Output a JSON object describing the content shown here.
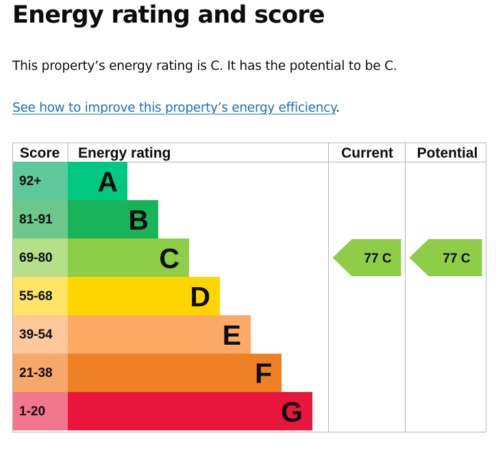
{
  "page": {
    "title": "Energy rating and score",
    "intro": "This property’s energy rating is C. It has the potential to be C.",
    "link_text": "See how to improve this property’s energy efficiency",
    "link_suffix": "."
  },
  "chart_data": {
    "type": "bar",
    "headers": {
      "score": "Score",
      "rating": "Energy rating",
      "current": "Current",
      "potential": "Potential"
    },
    "bands": [
      {
        "range": "92+",
        "letter": "A",
        "color": "#00c781",
        "label_color": "#5ec79b"
      },
      {
        "range": "81-91",
        "letter": "B",
        "color": "#19b459",
        "label_color": "#6bc78a"
      },
      {
        "range": "69-80",
        "letter": "C",
        "color": "#8dce46",
        "label_color": "#b5df88"
      },
      {
        "range": "55-68",
        "letter": "D",
        "color": "#ffd500",
        "label_color": "#ffe467"
      },
      {
        "range": "39-54",
        "letter": "E",
        "color": "#fcaa65",
        "label_color": "#fdc99a"
      },
      {
        "range": "21-38",
        "letter": "F",
        "color": "#ef8023",
        "label_color": "#f5a86a"
      },
      {
        "range": "1-20",
        "letter": "G",
        "color": "#e9153b",
        "label_color": "#f2778e"
      }
    ],
    "current": {
      "score": 77,
      "letter": "C",
      "label": "77  C",
      "color": "#8dce46"
    },
    "potential": {
      "score": 77,
      "letter": "C",
      "label": "77  C",
      "color": "#8dce46"
    }
  }
}
